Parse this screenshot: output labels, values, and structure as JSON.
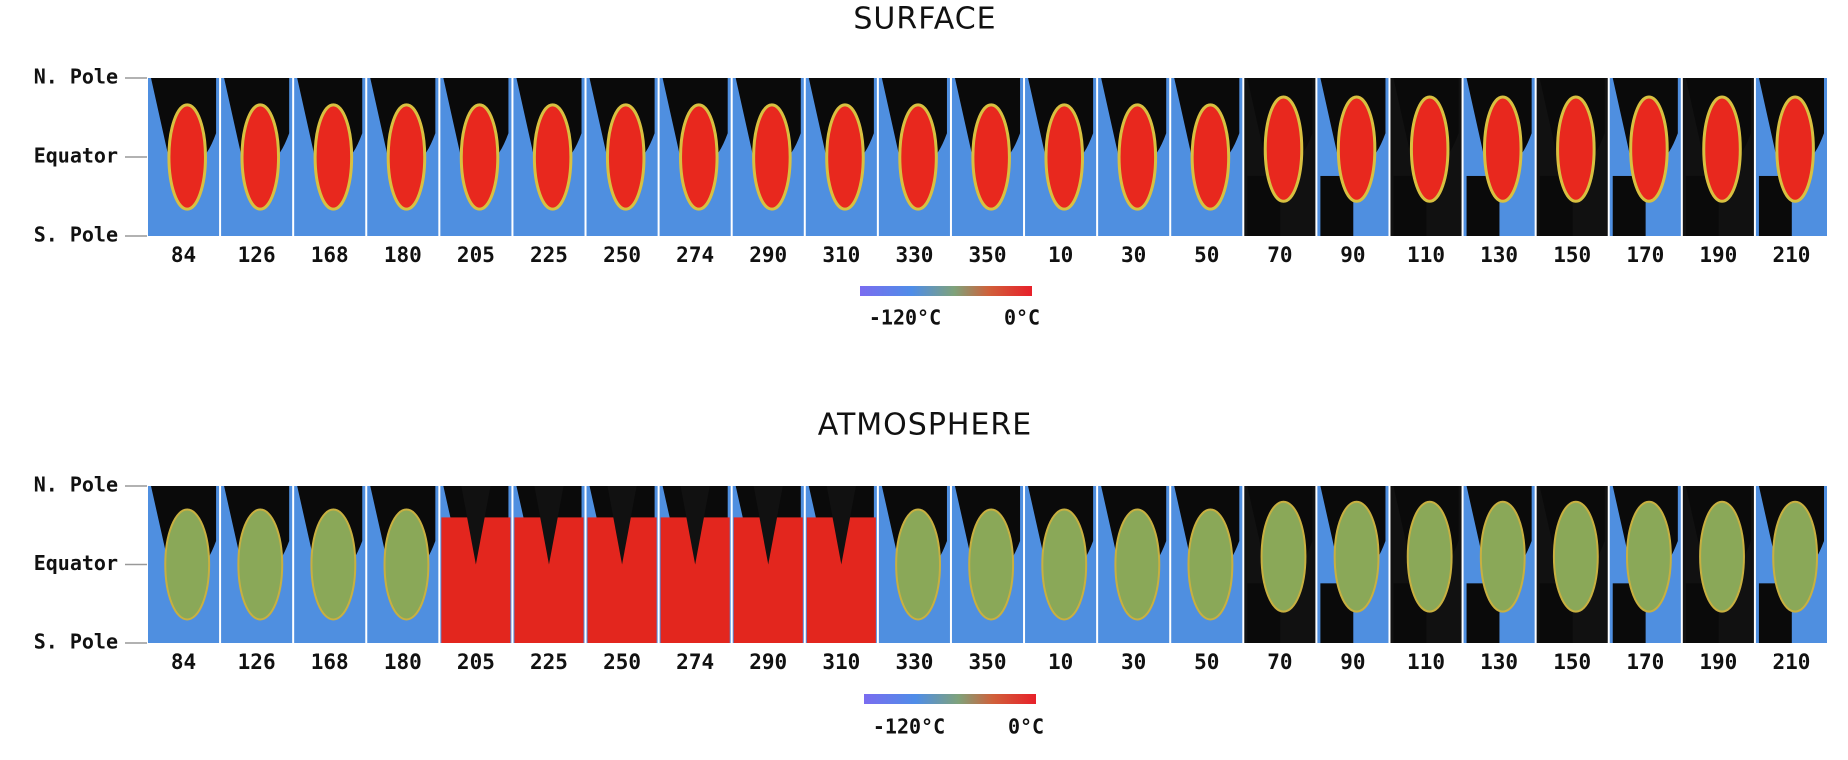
{
  "panels": [
    {
      "title": "SURFACE",
      "y_labels": [
        "N. Pole",
        "Equator",
        "S. Pole"
      ],
      "strips": [
        84,
        126,
        168,
        180,
        205,
        225,
        250,
        274,
        290,
        310,
        330,
        350,
        10,
        30,
        50,
        70,
        90,
        110,
        130,
        150,
        170,
        190,
        210
      ],
      "colorbar": {
        "min_label": "-120°C",
        "max_label": "0°C"
      }
    },
    {
      "title": "ATMOSPHERE",
      "y_labels": [
        "N. Pole",
        "Equator",
        "S. Pole"
      ],
      "strips": [
        84,
        126,
        168,
        180,
        205,
        225,
        250,
        274,
        290,
        310,
        330,
        350,
        10,
        30,
        50,
        70,
        90,
        110,
        130,
        150,
        170,
        190,
        210
      ],
      "colorbar": {
        "min_label": "-120°C",
        "max_label": "0°C"
      }
    }
  ]
}
